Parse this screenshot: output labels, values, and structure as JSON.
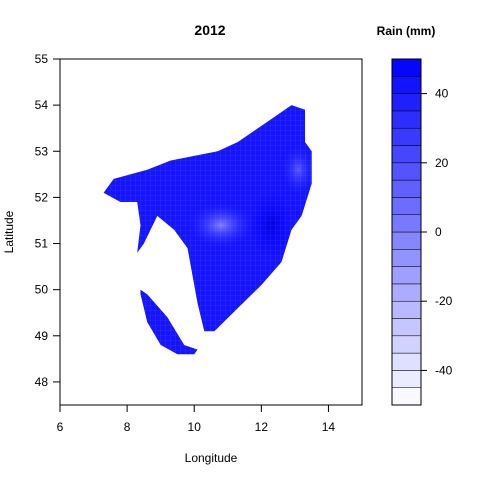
{
  "chart_data": {
    "type": "heatmap",
    "title": "2012",
    "xlabel": "Longitude",
    "ylabel": "Latitude",
    "xlim": [
      6,
      15
    ],
    "ylim": [
      47.5,
      55
    ],
    "xticks": [
      6,
      8,
      10,
      12,
      14
    ],
    "yticks": [
      48,
      49,
      50,
      51,
      52,
      53,
      54,
      55
    ],
    "grid": false,
    "legend": {
      "title": "Rain (mm)",
      "placement": "right",
      "range": [
        -50,
        50
      ],
      "ticks": [
        -40,
        -20,
        0,
        20,
        40
      ],
      "levels": [
        -50,
        -45,
        -40,
        -35,
        -30,
        -25,
        -20,
        -15,
        -10,
        -5,
        0,
        5,
        10,
        15,
        20,
        25,
        30,
        35,
        40,
        45,
        50
      ]
    },
    "regions": [
      {
        "name": "main",
        "value": 42,
        "outline": [
          [
            7.3,
            52.1
          ],
          [
            7.6,
            52.4
          ],
          [
            8.6,
            52.6
          ],
          [
            9.3,
            52.8
          ],
          [
            10,
            52.9
          ],
          [
            10.7,
            53.0
          ],
          [
            11.3,
            53.2
          ],
          [
            12.1,
            53.6
          ],
          [
            12.9,
            54.0
          ],
          [
            13.3,
            53.9
          ],
          [
            13.3,
            53.2
          ],
          [
            13.5,
            53.0
          ],
          [
            13.5,
            52.3
          ],
          [
            13.2,
            51.6
          ],
          [
            12.9,
            51.3
          ],
          [
            12.6,
            50.6
          ],
          [
            12.0,
            50.1
          ],
          [
            11.3,
            49.6
          ],
          [
            10.6,
            49.1
          ],
          [
            10.3,
            49.1
          ],
          [
            10.1,
            49.7
          ],
          [
            9.8,
            50.9
          ],
          [
            9.4,
            51.3
          ],
          [
            8.9,
            51.6
          ],
          [
            8.5,
            51.0
          ],
          [
            8.3,
            50.8
          ],
          [
            8.4,
            51.4
          ],
          [
            8.3,
            51.9
          ],
          [
            7.8,
            51.9
          ]
        ]
      },
      {
        "name": "south",
        "value": 42,
        "outline": [
          [
            8.4,
            50.0
          ],
          [
            8.6,
            49.9
          ],
          [
            9.2,
            49.4
          ],
          [
            9.7,
            48.8
          ],
          [
            10.1,
            48.7
          ],
          [
            10.0,
            48.6
          ],
          [
            9.5,
            48.6
          ],
          [
            9.0,
            48.8
          ],
          [
            8.6,
            49.3
          ],
          [
            8.4,
            49.9
          ]
        ]
      }
    ],
    "features": [
      {
        "value": 5,
        "at": [
          10.8,
          51.4
        ]
      },
      {
        "value": 38,
        "at": [
          12.3,
          51.4
        ]
      },
      {
        "value": 20,
        "at": [
          13.1,
          52.6
        ]
      }
    ]
  }
}
